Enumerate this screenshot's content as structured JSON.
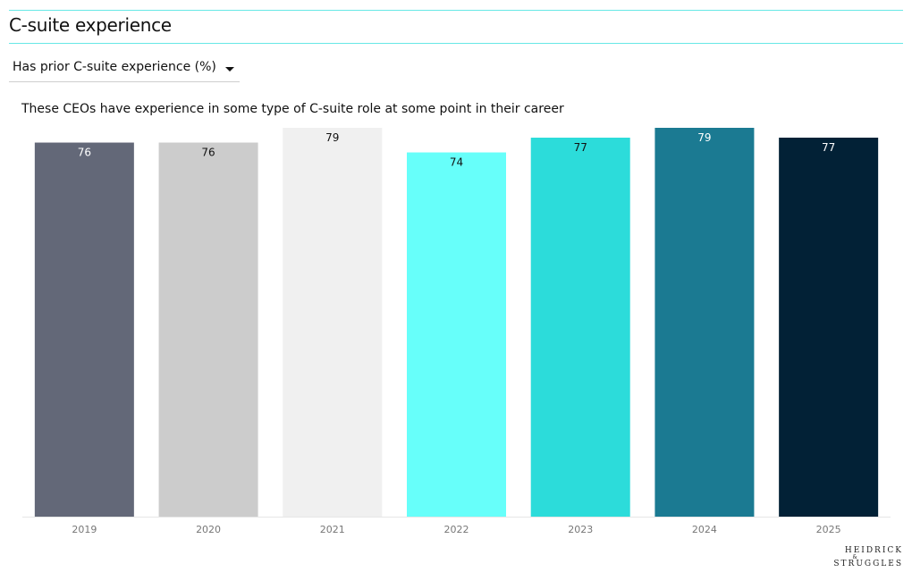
{
  "header": {
    "title": "C-suite experience"
  },
  "filter": {
    "selected": "Has prior C-suite experience (%)"
  },
  "subtitle": "These CEOs have experience in some type of C-suite role at some point in their career",
  "chart_data": {
    "type": "bar",
    "categories": [
      "2019",
      "2020",
      "2021",
      "2022",
      "2023",
      "2024",
      "2025"
    ],
    "values": [
      76,
      76,
      79,
      74,
      77,
      79,
      77
    ],
    "colors": [
      "#636878",
      "#cccccc",
      "#f0f0f0",
      "#67fffa",
      "#2cdcda",
      "#1b7a92",
      "#022136"
    ],
    "label_colors": [
      "#ffffff",
      "#111111",
      "#111111",
      "#111111",
      "#111111",
      "#ffffff",
      "#ffffff"
    ],
    "title": "",
    "xlabel": "",
    "ylabel": "",
    "ylim": [
      0,
      79
    ],
    "grid": false,
    "data_labels": true
  },
  "brand": {
    "line1": "HEIDRICK",
    "amp": "&",
    "line2": "STRUGGLES"
  }
}
